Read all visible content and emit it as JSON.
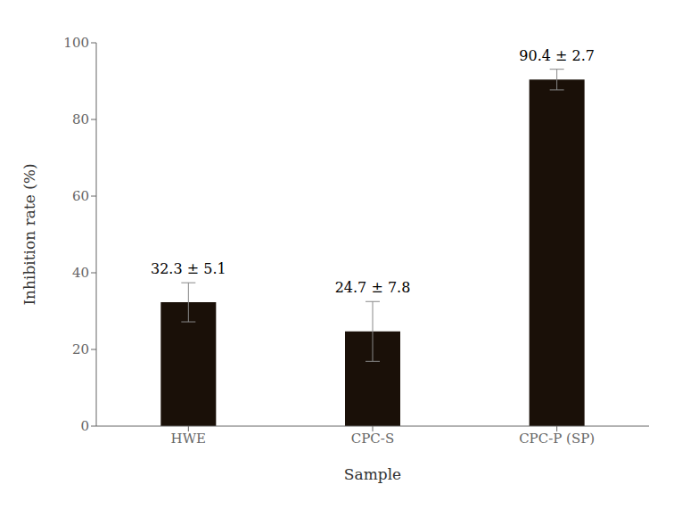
{
  "chart_data": {
    "type": "bar",
    "categories": [
      "HWE",
      "CPC-S",
      "CPC-P (SP)"
    ],
    "values": [
      32.3,
      24.7,
      90.4
    ],
    "errors": [
      5.1,
      7.8,
      2.7
    ],
    "color": "#1a1008",
    "xlabel": "Sample",
    "ylabel": "Inhibition rate (%)",
    "ylim": [
      0,
      100
    ],
    "yticks": [
      0,
      20,
      40,
      60,
      80,
      100
    ],
    "grid": false,
    "annotations": [
      "32.3 ±  5.1",
      "24.7 ±  7.8",
      "90.4 ±  2.7"
    ]
  }
}
